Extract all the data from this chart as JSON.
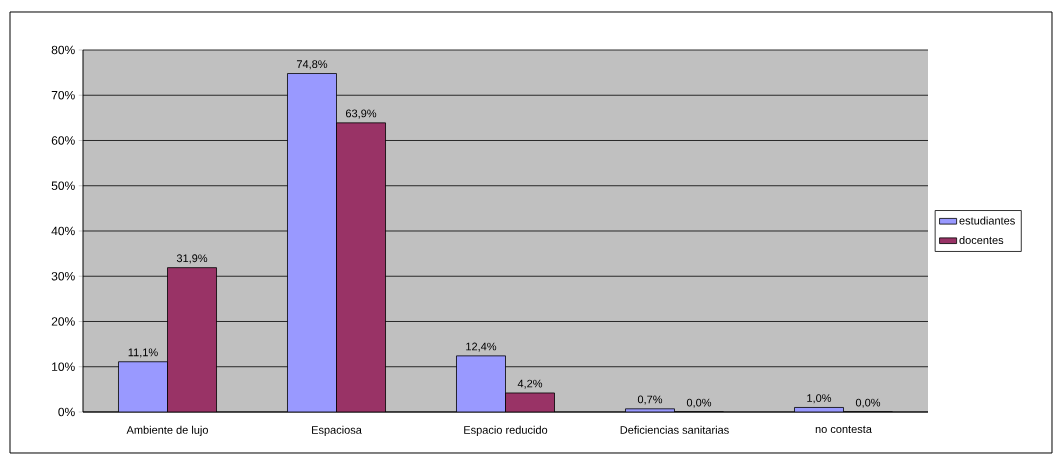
{
  "chart_data": {
    "type": "bar",
    "categories": [
      "Ambiente de lujo",
      "Espaciosa",
      "Espacio reducido",
      "Deficiencias sanitarias",
      "no contesta"
    ],
    "series": [
      {
        "name": "estudiantes",
        "color": "#9999ff",
        "values": [
          11.1,
          74.8,
          12.4,
          0.7,
          1.0
        ],
        "value_labels": [
          "11,1%",
          "74,8%",
          "12,4%",
          "0,7%",
          "1,0%"
        ]
      },
      {
        "name": "docentes",
        "color": "#993366",
        "values": [
          31.9,
          63.9,
          4.2,
          0.0,
          0.0
        ],
        "value_labels": [
          "31,9%",
          "63,9%",
          "4,2%",
          "0,0%",
          "0,0%"
        ]
      }
    ],
    "ylim": [
      0,
      80
    ],
    "yticks": [
      {
        "value": 0,
        "label": "0%"
      },
      {
        "value": 10,
        "label": "10%"
      },
      {
        "value": 20,
        "label": "20%"
      },
      {
        "value": 30,
        "label": "30%"
      },
      {
        "value": 40,
        "label": "40%"
      },
      {
        "value": 50,
        "label": "50%"
      },
      {
        "value": 60,
        "label": "60%"
      },
      {
        "value": 70,
        "label": "70%"
      },
      {
        "value": 80,
        "label": "80%"
      }
    ],
    "grid": "y",
    "legend": "right"
  }
}
